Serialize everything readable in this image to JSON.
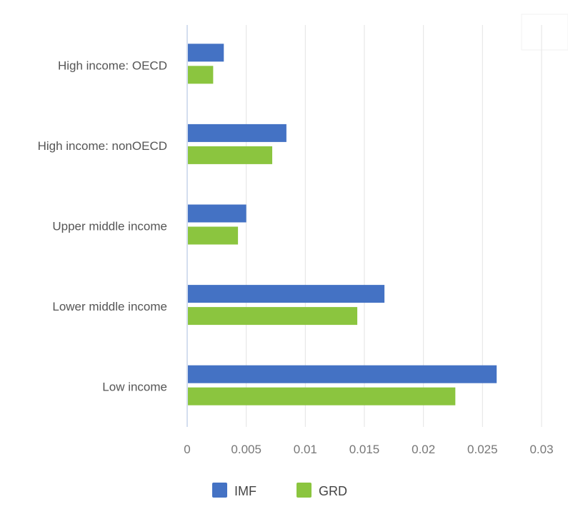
{
  "chart_data": {
    "type": "bar",
    "orientation": "horizontal",
    "title": "",
    "xlabel": "",
    "ylabel": "",
    "categories": [
      "High income: OECD",
      "High income: nonOECD",
      "Upper middle income",
      "Lower middle income",
      "Low income"
    ],
    "series": [
      {
        "name": "IMF",
        "color": "#4472c4",
        "values": [
          0.0031,
          0.0084,
          0.005,
          0.0167,
          0.0262
        ]
      },
      {
        "name": "GRD",
        "color": "#8bc53f",
        "values": [
          0.0022,
          0.0072,
          0.0043,
          0.0144,
          0.0227
        ]
      }
    ],
    "xlim": [
      0,
      0.03
    ],
    "xticks": [
      "0",
      "0.005",
      "0.01",
      "0.015",
      "0.02",
      "0.025",
      "0.03"
    ],
    "xtick_values": [
      0,
      0.005,
      0.01,
      0.015,
      0.02,
      0.025,
      0.03
    ],
    "grid": true,
    "legend": "bottom"
  }
}
